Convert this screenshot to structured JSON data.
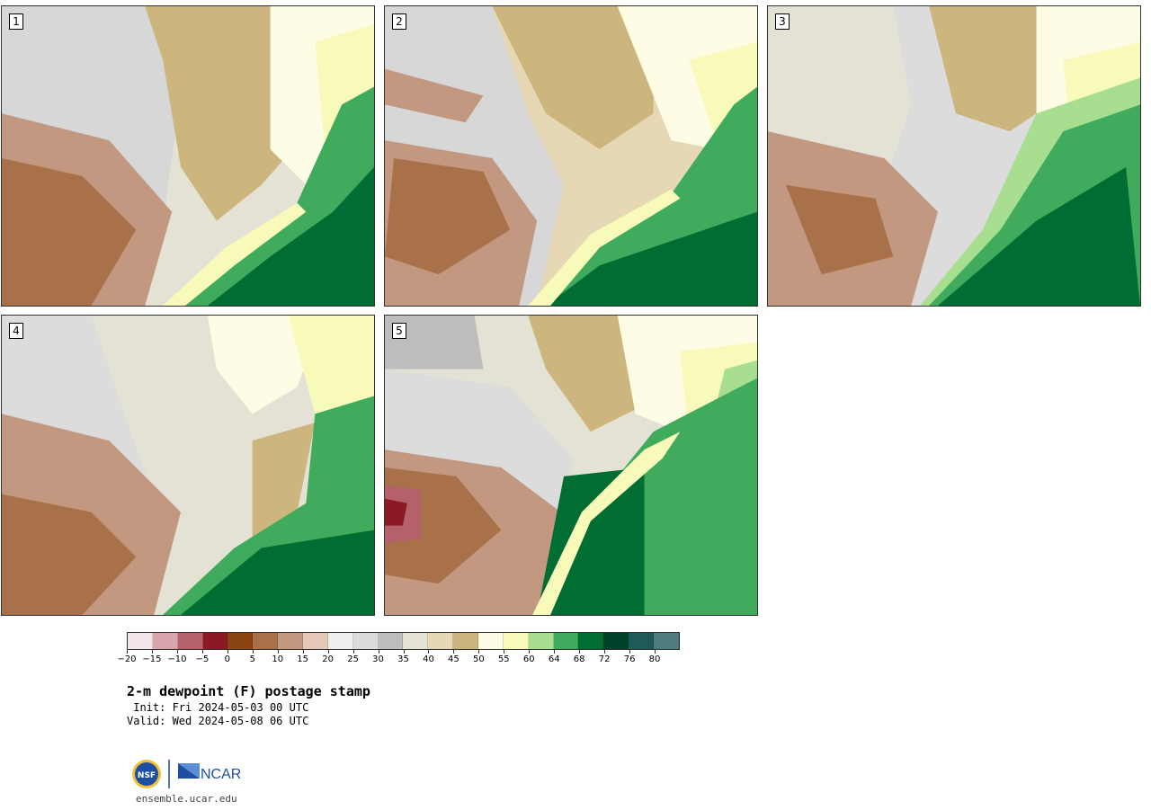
{
  "panels": [
    {
      "label": "1",
      "id": "p1"
    },
    {
      "label": "2",
      "id": "p2"
    },
    {
      "label": "3",
      "id": "p3"
    },
    {
      "label": "4",
      "id": "p4"
    },
    {
      "label": "5",
      "id": "p5"
    }
  ],
  "colorbar": {
    "colors": [
      "#f3e6ea",
      "#d7a6ad",
      "#b5616b",
      "#8c1a25",
      "#8a4513",
      "#a8714a",
      "#c39880",
      "#e4c8b8",
      "#efefef",
      "#dcdcdc",
      "#bdbdbd",
      "#e3e2d4",
      "#e7d8b5",
      "#cdb57e",
      "#fffce6",
      "#f7fab9",
      "#a8de8f",
      "#41ab5d",
      "#006d32",
      "#00432a",
      "#1e5a5a",
      "#4f7d82"
    ],
    "tick_labels": [
      "−20",
      "−15",
      "−10",
      "−5",
      "0",
      "5",
      "10",
      "15",
      "20",
      "25",
      "30",
      "35",
      "40",
      "45",
      "50",
      "55",
      "60",
      "64",
      "68",
      "72",
      "76",
      "80"
    ]
  },
  "title": "2-m dewpoint (F) postage stamp",
  "init": " Init: Fri 2024-05-03 00 UTC",
  "valid": "Valid: Wed 2024-05-08 06 UTC",
  "logo": {
    "nsf": "NSF",
    "ncar": "NCAR"
  },
  "url": "ensemble.ucar.edu"
}
